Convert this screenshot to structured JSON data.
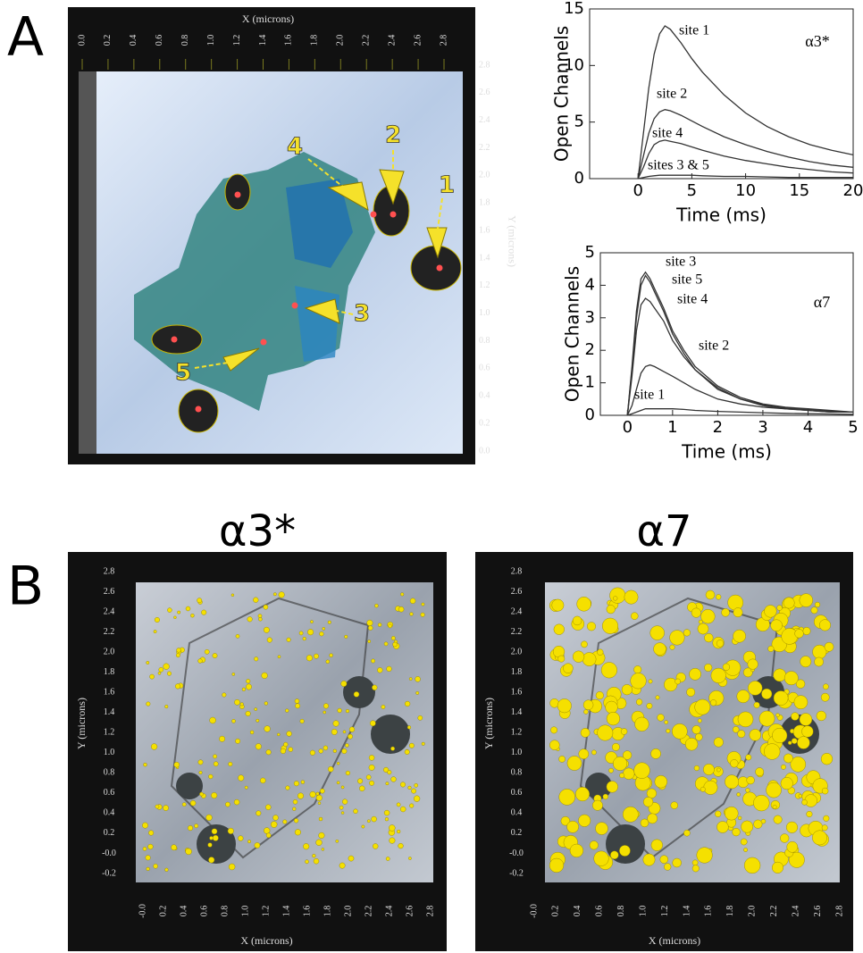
{
  "panel_labels": [
    "A",
    "B"
  ],
  "render_a": {
    "x_label": "X (microns)",
    "y_label": "Y (microns)",
    "xticks": [
      "0.0",
      "0.2",
      "0.4",
      "0.6",
      "0.8",
      "1.0",
      "1.2",
      "1.4",
      "1.6",
      "1.8",
      "2.0",
      "2.2",
      "2.4",
      "2.6",
      "2.8"
    ],
    "yticks": [
      "2.8",
      "2.6",
      "2.4",
      "2.2",
      "2.0",
      "1.8",
      "1.6",
      "1.4",
      "1.2",
      "1.0",
      "0.8",
      "0.6",
      "0.4",
      "0.2",
      "0.0"
    ],
    "site_labels": [
      "1",
      "2",
      "3",
      "4",
      "5"
    ]
  },
  "chart_data": [
    {
      "type": "line",
      "annotation": "α3*",
      "x_label": "Time (ms)",
      "y_label": "Open Channels",
      "xlim": [
        -4.5,
        20
      ],
      "xticks": [
        0,
        5,
        10,
        15,
        20
      ],
      "ylim": [
        0,
        15
      ],
      "yticks": [
        0,
        5,
        10,
        15
      ],
      "x": [
        0,
        0.5,
        1,
        1.5,
        2,
        2.5,
        3,
        4,
        5,
        6,
        8,
        10,
        12,
        14,
        16,
        18,
        20
      ],
      "series": [
        {
          "name": "site 1",
          "color": "#333333",
          "values": [
            0,
            4,
            8,
            11,
            12.8,
            13.5,
            13.2,
            12,
            10.6,
            9.4,
            7.4,
            5.8,
            4.6,
            3.7,
            3.0,
            2.5,
            2.1
          ]
        },
        {
          "name": "site 2",
          "color": "#333333",
          "values": [
            0,
            2,
            4,
            5.3,
            5.9,
            6.1,
            6,
            5.6,
            5.1,
            4.6,
            3.7,
            3.0,
            2.4,
            1.9,
            1.5,
            1.2,
            1.0
          ]
        },
        {
          "name": "site 4",
          "color": "#333333",
          "values": [
            0,
            1,
            2.2,
            3.0,
            3.3,
            3.4,
            3.3,
            3.1,
            2.8,
            2.5,
            2.0,
            1.6,
            1.3,
            1.0,
            0.8,
            0.6,
            0.5
          ]
        },
        {
          "name": "sites 3 & 5",
          "color": "#333333",
          "values": [
            0,
            0.1,
            0.2,
            0.25,
            0.3,
            0.3,
            0.3,
            0.3,
            0.3,
            0.25,
            0.2,
            0.2,
            0.15,
            0.1,
            0.1,
            0.1,
            0.1
          ]
        }
      ]
    },
    {
      "type": "line",
      "annotation": "α7",
      "x_label": "Time (ms)",
      "y_label": "Open Channels",
      "xlim": [
        -0.6,
        5
      ],
      "xticks": [
        0,
        1,
        2,
        3,
        4,
        5
      ],
      "ylim": [
        0,
        5
      ],
      "yticks": [
        0,
        1,
        2,
        3,
        4,
        5
      ],
      "x": [
        0,
        0.1,
        0.2,
        0.3,
        0.4,
        0.5,
        0.6,
        0.8,
        1,
        1.25,
        1.5,
        2,
        2.5,
        3,
        3.5,
        4,
        4.5,
        5
      ],
      "series": [
        {
          "name": "site 3",
          "color": "#333333",
          "values": [
            0,
            1.5,
            3.2,
            4.2,
            4.4,
            4.2,
            3.9,
            3.3,
            2.6,
            2.0,
            1.5,
            0.9,
            0.55,
            0.35,
            0.25,
            0.2,
            0.15,
            0.1
          ]
        },
        {
          "name": "site 5",
          "color": "#333333",
          "values": [
            0,
            1.4,
            3.0,
            4.0,
            4.3,
            4.1,
            3.8,
            3.2,
            2.5,
            1.9,
            1.4,
            0.85,
            0.5,
            0.33,
            0.23,
            0.18,
            0.13,
            0.1
          ]
        },
        {
          "name": "site 4",
          "color": "#333333",
          "values": [
            0,
            1.2,
            2.6,
            3.4,
            3.6,
            3.5,
            3.3,
            2.9,
            2.3,
            1.8,
            1.4,
            0.8,
            0.5,
            0.3,
            0.2,
            0.15,
            0.1,
            0.1
          ]
        },
        {
          "name": "site 2",
          "color": "#333333",
          "values": [
            0,
            0.3,
            0.8,
            1.3,
            1.5,
            1.55,
            1.5,
            1.35,
            1.2,
            1.0,
            0.8,
            0.5,
            0.35,
            0.25,
            0.2,
            0.15,
            0.1,
            0.1
          ]
        },
        {
          "name": "site 1",
          "color": "#333333",
          "values": [
            0,
            0.05,
            0.1,
            0.15,
            0.2,
            0.2,
            0.2,
            0.2,
            0.2,
            0.18,
            0.15,
            0.12,
            0.1,
            0.08,
            0.06,
            0.05,
            0.04,
            0.03
          ]
        }
      ]
    }
  ],
  "panel_b": [
    {
      "title": "α3*",
      "x_label": "X (microns)",
      "y_label": "Y (microns)",
      "xticks": [
        "-0.0",
        "0.2",
        "0.4",
        "0.6",
        "0.8",
        "1.0",
        "1.2",
        "1.4",
        "1.6",
        "1.8",
        "2.0",
        "2.2",
        "2.4",
        "2.6",
        "2.8"
      ],
      "yticks": [
        "2.8",
        "2.6",
        "2.4",
        "2.2",
        "2.0",
        "1.8",
        "1.6",
        "1.4",
        "1.2",
        "1.0",
        "0.8",
        "0.6",
        "0.4",
        "0.2",
        "-0.0",
        "-0.2"
      ]
    },
    {
      "title": "α7",
      "x_label": "X (microns)",
      "y_label": "Y (microns)",
      "xticks": [
        "-0.0",
        "0.2",
        "0.4",
        "0.6",
        "0.8",
        "1.0",
        "1.2",
        "1.4",
        "1.6",
        "1.8",
        "2.0",
        "2.2",
        "2.4",
        "2.6",
        "2.8"
      ],
      "yticks": [
        "2.8",
        "2.6",
        "2.4",
        "2.2",
        "2.0",
        "1.8",
        "1.6",
        "1.4",
        "1.2",
        "1.0",
        "0.8",
        "0.6",
        "0.4",
        "0.2",
        "-0.0",
        "-0.2"
      ]
    }
  ]
}
